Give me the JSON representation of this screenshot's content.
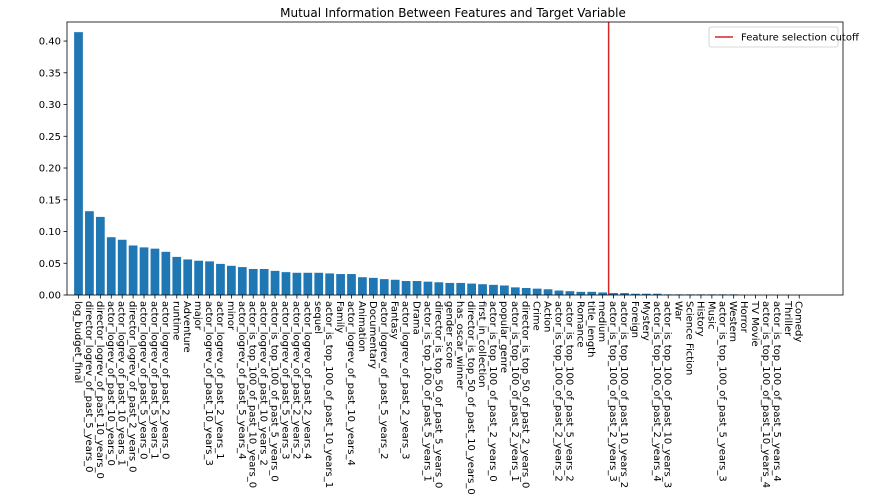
{
  "chart_data": {
    "type": "bar",
    "title": "Mutual Information Between Features and Target Variable",
    "xlabel": "",
    "ylabel": "",
    "ylim": [
      0,
      0.43
    ],
    "yticks": [
      0.0,
      0.05,
      0.1,
      0.15,
      0.2,
      0.25,
      0.3,
      0.35,
      0.4
    ],
    "bar_color": "#1f77b4",
    "categories": [
      "log_budget_final",
      "director_logrev_of_past_5_years_0",
      "director_logrev_of_past_10_years_0",
      "actor_logrev_of_past_10_years_0",
      "actor_logrev_of_past_10_years_1",
      "director_logrev_of_past_2_years_0",
      "actor_logrev_of_past_5_years_0",
      "actor_logrev_of_past_5_years_1",
      "actor_logrev_of_past_2_years_0",
      "runtime",
      "Adventure",
      "major",
      "actor_logrev_of_past_10_years_3",
      "actor_logrev_of_past_2_years_1",
      "minor",
      "actor_logrev_of_past_5_years_4",
      "actor_is_top_100_of_past_10_years_0",
      "actor_logrev_of_past_10_years_2",
      "actor_is_top_100_of_past_5_years_0",
      "actor_logrev_of_past_5_years_3",
      "actor_logrev_of_past_2_years_2",
      "actor_logrev_of_past_2_years_4",
      "sequel",
      "actor_is_top_100_of_past_10_years_1",
      "Family",
      "actor_logrev_of_past_10_years_4",
      "Animation",
      "Documentary",
      "actor_logrev_of_past_5_years_2",
      "Fantasy",
      "actor_logrev_of_past_2_years_3",
      "Drama",
      "actor_is_top_100_of_past_5_years_1",
      "director_is_top_50_of_past_5_years_0",
      "gender_score",
      "has_oscar_winner",
      "director_is_top_50_of_past_10_years_0",
      "first_in_collection",
      "actor_is_top_100_of_past_2_years_0",
      "popular_genre",
      "actor_is_top_100_of_past_2_years_1",
      "director_is_top_50_of_past_2_years_0",
      "Crime",
      "Action",
      "actor_is_top_100_of_past_2_years_2",
      "actor_is_top_100_of_past_5_years_2",
      "Romance",
      "title_length",
      "medium",
      "actor_is_top_100_of_past_2_years_3",
      "actor_is_top_100_of_past_10_years_2",
      "Foreign",
      "Mystery",
      "actor_is_top_100_of_past_2_years_4",
      "actor_is_top_100_of_past_10_years_3",
      "War",
      "Science Fiction",
      "History",
      "Music",
      "actor_is_top_100_of_past_5_years_3",
      "Western",
      "Horror",
      "TV Movie",
      "actor_is_top_100_of_past_10_years_4",
      "actor_is_top_100_of_past_5_years_4",
      "Thriller",
      "Comedy"
    ],
    "values": [
      0.414,
      0.132,
      0.123,
      0.091,
      0.087,
      0.078,
      0.075,
      0.073,
      0.068,
      0.06,
      0.056,
      0.054,
      0.053,
      0.049,
      0.046,
      0.044,
      0.041,
      0.041,
      0.038,
      0.036,
      0.035,
      0.035,
      0.035,
      0.034,
      0.033,
      0.033,
      0.028,
      0.027,
      0.025,
      0.024,
      0.022,
      0.022,
      0.021,
      0.02,
      0.019,
      0.019,
      0.018,
      0.017,
      0.016,
      0.015,
      0.012,
      0.011,
      0.01,
      0.009,
      0.007,
      0.006,
      0.005,
      0.005,
      0.004,
      0.003,
      0.003,
      0.002,
      0.002,
      0.002,
      0.001,
      0.001,
      0.001,
      0.001,
      0.001,
      0.001,
      0.001,
      0.0,
      0.0,
      0.0,
      0.0,
      0.0,
      0.0
    ],
    "cutoff": {
      "after_category": "medium",
      "label": "Feature selection cutoff",
      "color": "#d62728"
    },
    "legend": {
      "position": "upper-right",
      "entries": [
        "Feature selection cutoff"
      ]
    }
  }
}
